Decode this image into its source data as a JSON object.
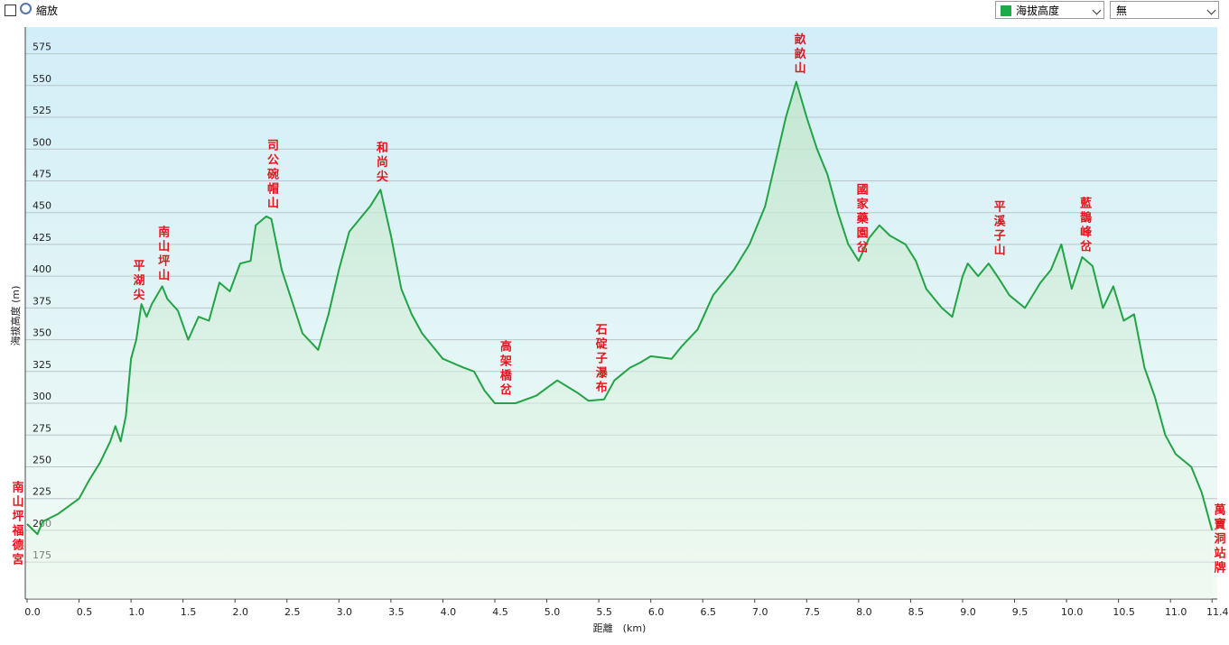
{
  "ui": {
    "zoom_label": "縮放",
    "select_series": "海拔高度",
    "select_overlay": "無"
  },
  "chart_data": {
    "type": "line",
    "x_label": "距離　(km)",
    "y_label": "海拔高度 (m)",
    "color": "#22a345",
    "grid": true,
    "x": [
      0.0,
      0.1,
      0.15,
      0.3,
      0.5,
      0.6,
      0.7,
      0.8,
      0.85,
      0.9,
      0.95,
      1.0,
      1.05,
      1.1,
      1.15,
      1.2,
      1.3,
      1.35,
      1.45,
      1.55,
      1.65,
      1.75,
      1.85,
      1.95,
      2.05,
      2.15,
      2.2,
      2.3,
      2.35,
      2.45,
      2.55,
      2.65,
      2.8,
      2.9,
      3.0,
      3.1,
      3.2,
      3.3,
      3.4,
      3.5,
      3.6,
      3.7,
      3.8,
      4.0,
      4.2,
      4.3,
      4.4,
      4.5,
      4.7,
      4.9,
      5.0,
      5.1,
      5.3,
      5.4,
      5.55,
      5.65,
      5.8,
      5.9,
      6.0,
      6.2,
      6.3,
      6.45,
      6.6,
      6.8,
      6.95,
      7.1,
      7.2,
      7.3,
      7.4,
      7.5,
      7.6,
      7.7,
      7.8,
      7.9,
      8.0,
      8.1,
      8.2,
      8.3,
      8.45,
      8.55,
      8.65,
      8.8,
      8.9,
      9.0,
      9.05,
      9.15,
      9.25,
      9.35,
      9.45,
      9.6,
      9.75,
      9.85,
      9.95,
      10.05,
      10.15,
      10.25,
      10.35,
      10.45,
      10.55,
      10.65,
      10.75,
      10.85,
      10.95,
      11.05,
      11.2,
      11.3,
      11.4
    ],
    "values": [
      205,
      197,
      207,
      213,
      225,
      240,
      253,
      270,
      282,
      270,
      290,
      335,
      350,
      378,
      368,
      378,
      392,
      382,
      373,
      350,
      368,
      365,
      395,
      388,
      410,
      412,
      440,
      447,
      445,
      405,
      380,
      355,
      342,
      370,
      405,
      435,
      445,
      455,
      468,
      432,
      390,
      370,
      355,
      335,
      328,
      325,
      310,
      300,
      300,
      306,
      312,
      318,
      308,
      302,
      303,
      318,
      328,
      332,
      337,
      335,
      345,
      358,
      385,
      405,
      425,
      455,
      490,
      525,
      553,
      525,
      500,
      480,
      450,
      425,
      412,
      430,
      440,
      432,
      425,
      412,
      390,
      375,
      368,
      400,
      410,
      400,
      410,
      398,
      385,
      375,
      395,
      405,
      425,
      390,
      415,
      408,
      375,
      392,
      365,
      370,
      328,
      305,
      275,
      260,
      250,
      230,
      200
    ],
    "xlim": [
      0,
      11.45
    ],
    "ylim": [
      146,
      596
    ],
    "xticks": [
      {
        "value": 0,
        "label": "0.0"
      },
      0.5,
      {
        "value": 1,
        "label": "1.0"
      },
      1.5,
      {
        "value": 2,
        "label": "2.0"
      },
      2.5,
      {
        "value": 3,
        "label": "3.0"
      },
      3.5,
      {
        "value": 4,
        "label": "4.0"
      },
      4.5,
      {
        "value": 5,
        "label": "5.0"
      },
      5.5,
      {
        "value": 6,
        "label": "6.0"
      },
      6.5,
      {
        "value": 7,
        "label": "7.0"
      },
      7.5,
      {
        "value": 8,
        "label": "8.0"
      },
      8.5,
      {
        "value": 9,
        "label": "9.0"
      },
      9.5,
      {
        "value": 10,
        "label": "10.0"
      },
      10.5,
      {
        "value": 11,
        "label": "11.0"
      },
      11.4
    ],
    "yticks": [
      175,
      200,
      225,
      250,
      275,
      300,
      325,
      350,
      375,
      400,
      425,
      450,
      475,
      500,
      525,
      550,
      575
    ],
    "annotations": [
      {
        "text": "南山坪福德宮",
        "x": 0,
        "y": 205
      },
      {
        "text": "平湖尖",
        "x": 1.06,
        "y": 375
      },
      {
        "text": "南山坪山",
        "x": 1.3,
        "y": 390
      },
      {
        "text": "司公碗帽山",
        "x": 2.35,
        "y": 447
      },
      {
        "text": "和尚尖",
        "x": 3.4,
        "y": 468
      },
      {
        "text": "高架橋岔",
        "x": 4.59,
        "y": 300
      },
      {
        "text": "石碇子瀑布",
        "x": 5.51,
        "y": 302
      },
      {
        "text": "畝畝山",
        "x": 7.42,
        "y": 553
      },
      {
        "text": "國家藥園岔",
        "x": 8.02,
        "y": 412
      },
      {
        "text": "平溪子山",
        "x": 9.34,
        "y": 410
      },
      {
        "text": "藍鵲峰岔",
        "x": 10.17,
        "y": 413
      },
      {
        "text": "萬寶洞站牌",
        "x": 11.4,
        "y": 200
      }
    ]
  }
}
